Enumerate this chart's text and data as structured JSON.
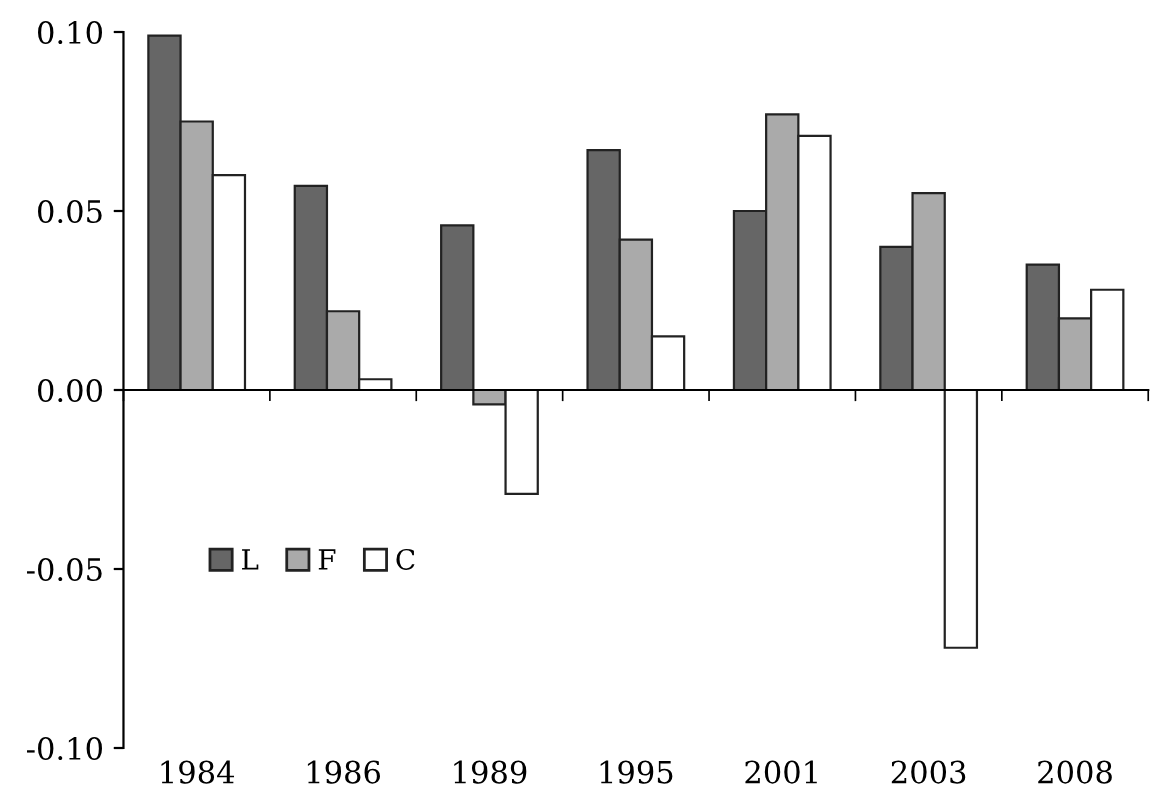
{
  "chart_data": {
    "type": "bar",
    "categories": [
      "1984",
      "1986",
      "1989",
      "1995",
      "2001",
      "2003",
      "2008"
    ],
    "series": [
      {
        "name": "L",
        "color": "#666666",
        "values": [
          0.099,
          0.057,
          0.046,
          0.067,
          0.05,
          0.04,
          0.035
        ]
      },
      {
        "name": "F",
        "color": "#aaaaaa",
        "values": [
          0.075,
          0.022,
          -0.004,
          0.042,
          0.077,
          0.055,
          0.02
        ]
      },
      {
        "name": "C",
        "color": "#ffffff",
        "values": [
          0.06,
          0.003,
          -0.029,
          0.015,
          0.071,
          -0.072,
          0.028
        ]
      }
    ],
    "ylim": [
      -0.1,
      0.1
    ],
    "yticks": [
      {
        "value": -0.1,
        "label": "-0.10"
      },
      {
        "value": -0.05,
        "label": "-0.05"
      },
      {
        "value": 0,
        "label": "0.00"
      },
      {
        "value": 0.05,
        "label": "0.05"
      },
      {
        "value": 0.1,
        "label": "0.10"
      }
    ],
    "legend": "left"
  }
}
